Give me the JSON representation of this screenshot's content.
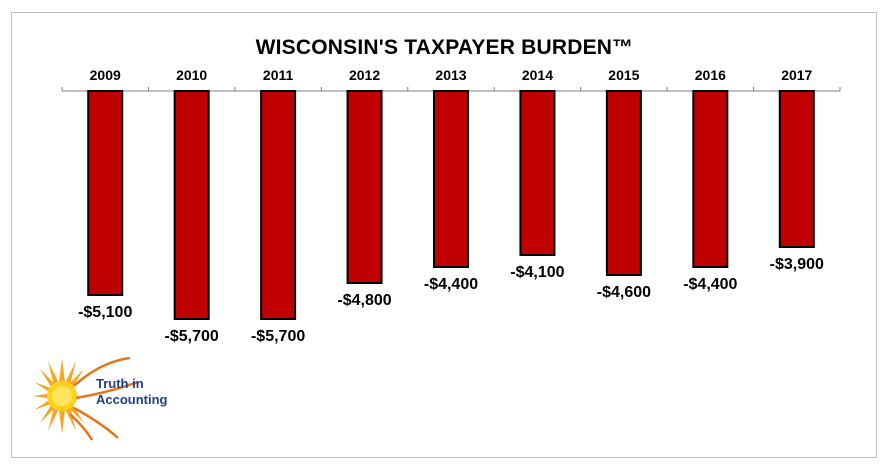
{
  "chart_data": {
    "type": "bar",
    "title": "WISCONSIN'S TAXPAYER BURDEN™",
    "categories": [
      "2009",
      "2010",
      "2011",
      "2012",
      "2013",
      "2014",
      "2015",
      "2016",
      "2017"
    ],
    "values": [
      -5100,
      -5700,
      -5700,
      -4800,
      -4400,
      -4100,
      -4600,
      -4400,
      -3900
    ],
    "data_labels": [
      "-$5,100",
      "-$5,700",
      "-$5,700",
      "-$4,800",
      "-$4,400",
      "-$4,100",
      "-$4,600",
      "-$4,400",
      "-$3,900"
    ],
    "xlabel": "",
    "ylabel": "",
    "ylim": [
      -5700,
      0
    ],
    "grid": false,
    "category_axis_position": "top",
    "bar_color": "#c00000",
    "bar_border_color": "#000000"
  },
  "logo": {
    "line1": "Truth in",
    "line2": "Accounting"
  }
}
